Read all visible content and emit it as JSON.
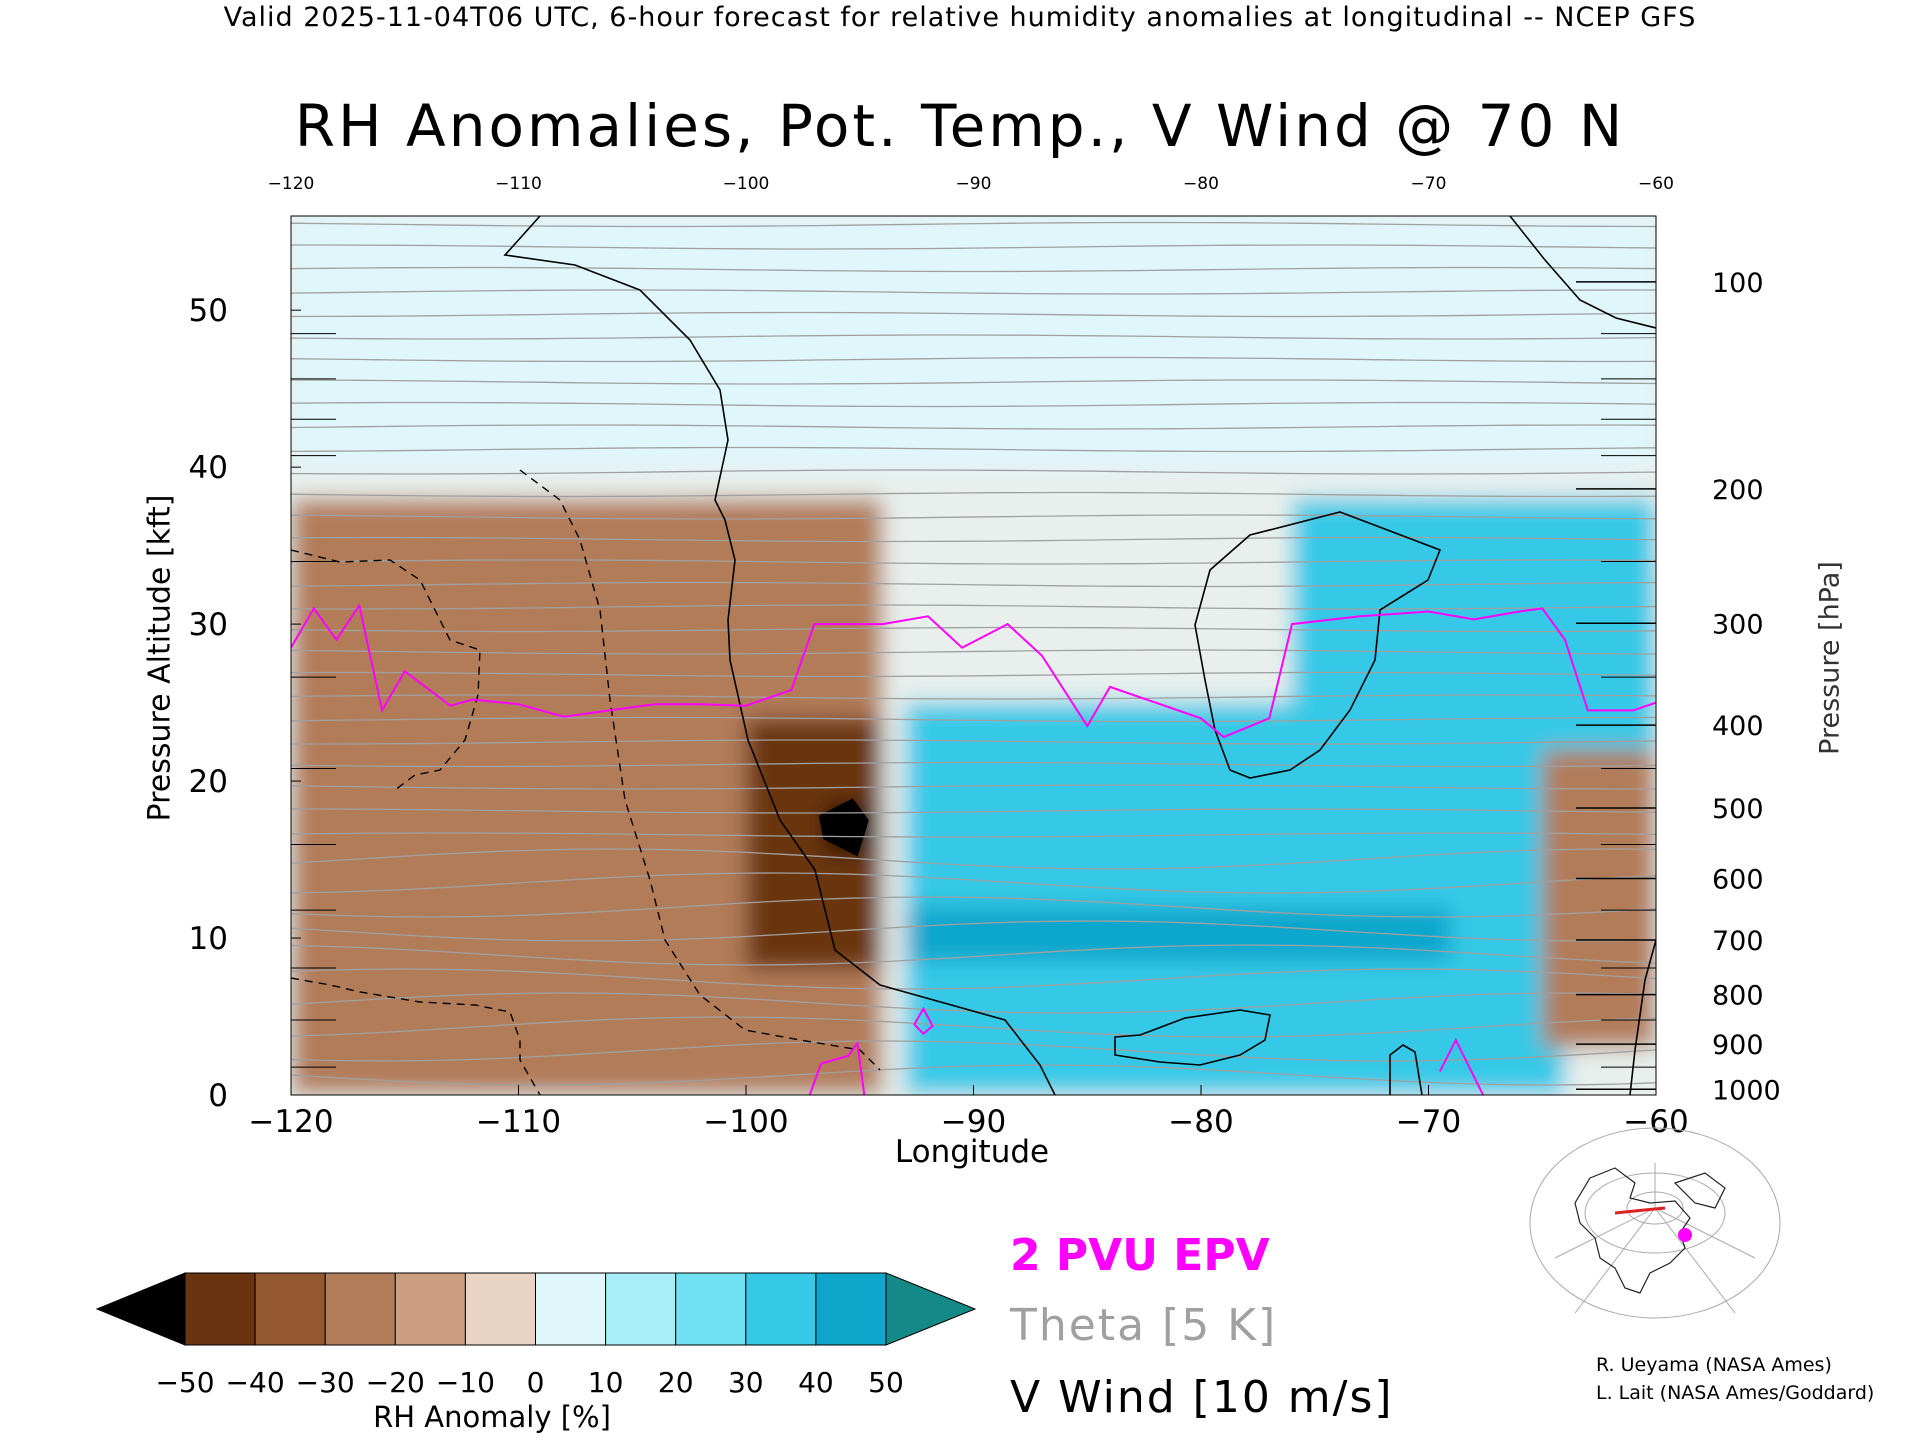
{
  "header": "Valid 2025-11-04T06 UTC, 6-hour forecast for relative humidity anomalies at longitudinal -- NCEP GFS",
  "title": "RH Anomalies, Pot. Temp., V Wind @ 70 N",
  "axes": {
    "xlabel": "Longitude",
    "ylabel_left": "Pressure Altitude [kft]",
    "ylabel_right": "Pressure [hPa]",
    "x_ticks": [
      "−120",
      "−110",
      "−100",
      "−90",
      "−80",
      "−70",
      "−60"
    ],
    "x_top_ticks": [
      "−120",
      "−110",
      "−100",
      "−90",
      "−80",
      "−70",
      "−60"
    ],
    "y_left_ticks": [
      "0",
      "10",
      "20",
      "30",
      "40",
      "50"
    ],
    "y_right_ticks": [
      "100",
      "200",
      "300",
      "400",
      "500",
      "600",
      "700",
      "800",
      "900",
      "1000"
    ]
  },
  "colorbar": {
    "label": "RH Anomaly [%]",
    "ticks": [
      "−50",
      "−40",
      "−30",
      "−20",
      "−10",
      "0",
      "10",
      "20",
      "30",
      "40",
      "50"
    ],
    "colors": [
      "#3c1a05",
      "#6b3411",
      "#93582f",
      "#b27c58",
      "#cc9e7f",
      "#e9d3c5",
      "#dff6fb",
      "#a8eef8",
      "#70e0f3",
      "#36c9e7",
      "#0fa6cc",
      "#078aa8"
    ],
    "under_color": "#000000",
    "over_color": "#138a87"
  },
  "legend": {
    "epv": "2 PVU EPV",
    "theta": "Theta [5 K]",
    "vwind": "V Wind [10 m/s]",
    "epv_color": "#ff00ff",
    "theta_color": "#a0a0a0",
    "vwind_color": "#000000"
  },
  "credits": [
    "R. Ueyama (NASA Ames)",
    "L. Lait (NASA Ames/Goddard)"
  ],
  "chart_data": {
    "type": "heatmap",
    "title": "RH Anomalies, Pot. Temp., V Wind @ 70 N",
    "xlabel": "Longitude",
    "ylabel": "Pressure Altitude [kft]",
    "xlim": [
      -120,
      -60
    ],
    "ylim": [
      0,
      56
    ],
    "grid": false,
    "anomaly_regions": [
      {
        "x": [
          -120,
          -94
        ],
        "y": [
          0,
          38
        ],
        "rh_anomaly": -25
      },
      {
        "x": [
          -100,
          -94
        ],
        "y": [
          8,
          24
        ],
        "rh_anomaly": -45
      },
      {
        "x": [
          -96.5,
          -94.5
        ],
        "y": [
          15.5,
          18.5
        ],
        "rh_anomaly": -52
      },
      {
        "x": [
          -93,
          -64
        ],
        "y": [
          0,
          25
        ],
        "rh_anomaly": 30
      },
      {
        "x": [
          -93,
          -69
        ],
        "y": [
          8.5,
          12
        ],
        "rh_anomaly": 45
      },
      {
        "x": [
          -76,
          -60
        ],
        "y": [
          22,
          38
        ],
        "rh_anomaly": 30
      },
      {
        "x": [
          -65,
          -60
        ],
        "y": [
          3,
          22
        ],
        "rh_anomaly": -25
      },
      {
        "x": [
          -120,
          -60
        ],
        "y": [
          40,
          56
        ],
        "rh_anomaly": 2
      }
    ],
    "pv_2pvu_line": {
      "x": [
        -120,
        -119,
        -118,
        -117,
        -116,
        -115,
        -113,
        -112,
        -110,
        -108,
        -106,
        -104,
        -102,
        -100,
        -98,
        -97,
        -94,
        -92,
        -90.5,
        -88.5,
        -87,
        -85,
        -84,
        -82,
        -80,
        -79,
        -77,
        -76,
        -73,
        -70,
        -68,
        -66,
        -65,
        -64,
        -63,
        -61,
        -60
      ],
      "y": [
        28.5,
        31,
        29,
        31.2,
        24.5,
        27,
        24.8,
        25.2,
        24.9,
        24.1,
        24.5,
        24.9,
        24.9,
        24.8,
        25.8,
        30,
        30,
        30.5,
        28.5,
        30,
        28,
        23.5,
        26,
        25,
        24,
        22.8,
        24,
        30,
        30.5,
        30.8,
        30.3,
        30.8,
        31,
        29,
        24.5,
        24.5,
        25
      ]
    },
    "theta_contours_K": [
      260,
      270,
      280,
      290,
      300,
      310,
      320,
      330,
      340,
      350,
      360,
      370,
      380,
      390,
      400,
      410,
      420
    ],
    "v_wind_contours_ms": [
      -10,
      0,
      10
    ]
  }
}
